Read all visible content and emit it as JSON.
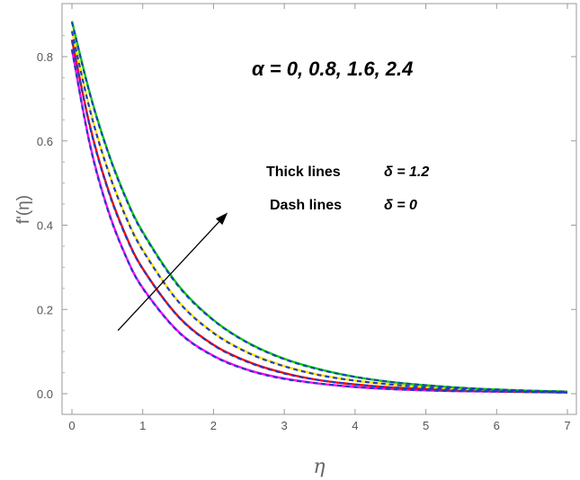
{
  "chart_data": {
    "type": "line",
    "title": "",
    "xlabel": "η",
    "ylabel": "f'(η)",
    "xlim": [
      0,
      7
    ],
    "ylim": [
      -0.05,
      0.9
    ],
    "x_ticks": [
      "0",
      "1",
      "2",
      "3",
      "4",
      "5",
      "6",
      "7"
    ],
    "y_ticks": [
      "0.0",
      "0.2",
      "0.4",
      "0.6",
      "0.8"
    ],
    "grid": false,
    "annotations": {
      "alpha_values": "α = 0, 0.8, 1.6, 2.4",
      "thick_label": "Thick lines",
      "thick_value": "δ = 1.2",
      "dash_label": "Dash lines",
      "dash_value": "δ = 0",
      "arrow_from": [
        0.65,
        0.15
      ],
      "arrow_to": [
        2.2,
        0.43
      ]
    },
    "x": [
      0,
      0.25,
      0.5,
      0.75,
      1,
      1.5,
      2,
      2.5,
      3,
      3.5,
      4,
      4.5,
      5,
      5.5,
      6,
      6.5,
      7
    ],
    "series": [
      {
        "color": "#ff00ff",
        "style": "solid",
        "values": [
          0.818,
          0.595,
          0.441,
          0.331,
          0.251,
          0.148,
          0.09,
          0.056,
          0.036,
          0.024,
          0.016,
          0.011,
          0.008,
          0.006,
          0.005,
          0.004,
          0.003
        ]
      },
      {
        "color": "#ff0000",
        "style": "solid",
        "values": [
          0.84,
          0.638,
          0.49,
          0.38,
          0.297,
          0.184,
          0.116,
          0.075,
          0.049,
          0.032,
          0.022,
          0.015,
          0.011,
          0.008,
          0.006,
          0.004,
          0.003
        ]
      },
      {
        "color": "#ffe600",
        "style": "solid",
        "values": [
          0.862,
          0.678,
          0.536,
          0.426,
          0.342,
          0.22,
          0.145,
          0.097,
          0.066,
          0.045,
          0.031,
          0.022,
          0.016,
          0.011,
          0.008,
          0.006,
          0.004
        ]
      },
      {
        "color": "#00cc00",
        "style": "solid",
        "values": [
          0.884,
          0.715,
          0.579,
          0.47,
          0.384,
          0.258,
          0.175,
          0.12,
          0.083,
          0.058,
          0.04,
          0.028,
          0.02,
          0.014,
          0.01,
          0.007,
          0.005
        ]
      },
      {
        "color": "#1f3fbf",
        "style": "dashed",
        "values": [
          0.816,
          0.593,
          0.439,
          0.33,
          0.25,
          0.147,
          0.089,
          0.055,
          0.035,
          0.024,
          0.016,
          0.011,
          0.008,
          0.006,
          0.005,
          0.004,
          0.003
        ]
      },
      {
        "color": "#1f3fbf",
        "style": "dashed",
        "values": [
          0.838,
          0.636,
          0.488,
          0.378,
          0.296,
          0.183,
          0.115,
          0.074,
          0.048,
          0.032,
          0.022,
          0.015,
          0.011,
          0.008,
          0.006,
          0.004,
          0.003
        ]
      },
      {
        "color": "#1f3fbf",
        "style": "dashed",
        "values": [
          0.86,
          0.676,
          0.534,
          0.424,
          0.34,
          0.219,
          0.144,
          0.096,
          0.065,
          0.044,
          0.031,
          0.022,
          0.015,
          0.011,
          0.008,
          0.006,
          0.004
        ]
      },
      {
        "color": "#1f3fbf",
        "style": "dashed",
        "values": [
          0.882,
          0.713,
          0.577,
          0.468,
          0.382,
          0.256,
          0.174,
          0.119,
          0.082,
          0.057,
          0.04,
          0.028,
          0.02,
          0.014,
          0.01,
          0.007,
          0.005
        ]
      }
    ]
  }
}
